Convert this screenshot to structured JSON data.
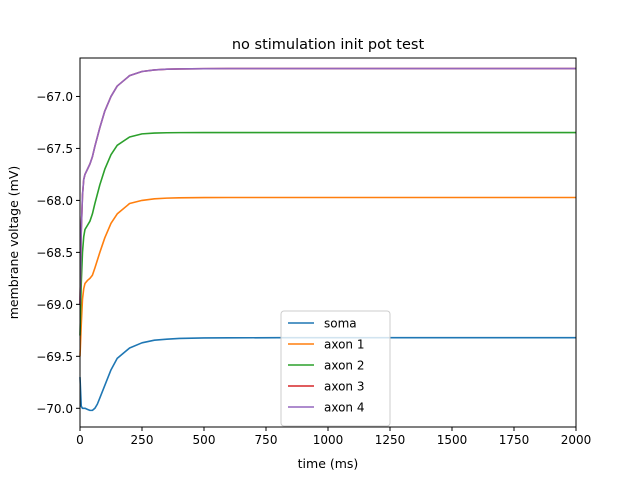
{
  "chart_data": {
    "type": "line",
    "title": "no stimulation init pot test",
    "xlabel": "time (ms)",
    "ylabel": "membrane voltage (mV)",
    "xlim": [
      0,
      2000
    ],
    "ylim": [
      -70.18,
      -66.63
    ],
    "xticks": [
      0,
      250,
      500,
      750,
      1000,
      1250,
      1500,
      1750,
      2000
    ],
    "xtick_labels": [
      "0",
      "250",
      "500",
      "750",
      "1000",
      "1250",
      "1500",
      "1750",
      "2000"
    ],
    "yticks": [
      -70.0,
      -69.5,
      -69.0,
      -68.5,
      -68.0,
      -67.5,
      -67.0
    ],
    "ytick_labels": [
      "−70.0",
      "−69.5",
      "−69.0",
      "−68.5",
      "−68.0",
      "−67.5",
      "−67.0"
    ],
    "grid": false,
    "legend_position": "lower-center",
    "series": [
      {
        "name": "soma",
        "color": "#1f77b4",
        "x": [
          0,
          5,
          10,
          20,
          30,
          40,
          50,
          60,
          70,
          80,
          100,
          125,
          150,
          200,
          250,
          300,
          350,
          400,
          500,
          600,
          800,
          1000,
          1500,
          2000
        ],
        "y": [
          -69.7,
          -69.98,
          -70.0,
          -70.0,
          -70.01,
          -70.02,
          -70.02,
          -70.0,
          -69.96,
          -69.9,
          -69.78,
          -69.63,
          -69.52,
          -69.42,
          -69.37,
          -69.345,
          -69.335,
          -69.328,
          -69.323,
          -69.322,
          -69.321,
          -69.321,
          -69.321,
          -69.321
        ]
      },
      {
        "name": "axon 1",
        "color": "#ff7f0e",
        "x": [
          0,
          5,
          10,
          15,
          20,
          30,
          40,
          50,
          60,
          80,
          100,
          125,
          150,
          200,
          250,
          300,
          350,
          400,
          500,
          600,
          800,
          1000,
          1500,
          2000
        ],
        "y": [
          -69.5,
          -69.2,
          -68.95,
          -68.85,
          -68.8,
          -68.77,
          -68.75,
          -68.72,
          -68.65,
          -68.5,
          -68.36,
          -68.22,
          -68.13,
          -68.03,
          -68.0,
          -67.985,
          -67.978,
          -67.975,
          -67.973,
          -67.972,
          -67.972,
          -67.972,
          -67.972,
          -67.972
        ]
      },
      {
        "name": "axon 2",
        "color": "#2ca02c",
        "x": [
          0,
          5,
          10,
          15,
          20,
          30,
          40,
          50,
          60,
          80,
          100,
          125,
          150,
          200,
          250,
          300,
          350,
          400,
          500,
          600,
          800,
          1000,
          1500,
          2000
        ],
        "y": [
          -69.3,
          -68.8,
          -68.5,
          -68.35,
          -68.28,
          -68.24,
          -68.2,
          -68.13,
          -68.03,
          -67.85,
          -67.7,
          -67.56,
          -67.47,
          -67.39,
          -67.36,
          -67.352,
          -67.349,
          -67.348,
          -67.347,
          -67.347,
          -67.347,
          -67.347,
          -67.347,
          -67.347
        ]
      },
      {
        "name": "axon 3",
        "color": "#d62728",
        "x": [
          0,
          5,
          10,
          15,
          20,
          30,
          40,
          50,
          60,
          80,
          100,
          125,
          150,
          200,
          250,
          300,
          350,
          400,
          500,
          600,
          800,
          1000,
          1500,
          2000
        ],
        "y": [
          -69.0,
          -68.3,
          -67.95,
          -67.8,
          -67.75,
          -67.7,
          -67.65,
          -67.58,
          -67.48,
          -67.3,
          -67.14,
          -67.0,
          -66.9,
          -66.8,
          -66.76,
          -66.745,
          -66.738,
          -66.735,
          -66.733,
          -66.732,
          -66.732,
          -66.732,
          -66.732,
          -66.732
        ]
      },
      {
        "name": "axon 4",
        "color": "#9467bd",
        "x": [
          0,
          5,
          10,
          15,
          20,
          30,
          40,
          50,
          60,
          80,
          100,
          125,
          150,
          200,
          250,
          300,
          350,
          400,
          500,
          600,
          800,
          1000,
          1500,
          2000
        ],
        "y": [
          -69.0,
          -68.3,
          -67.95,
          -67.8,
          -67.75,
          -67.7,
          -67.65,
          -67.58,
          -67.48,
          -67.3,
          -67.14,
          -67.0,
          -66.9,
          -66.8,
          -66.76,
          -66.745,
          -66.738,
          -66.735,
          -66.733,
          -66.732,
          -66.732,
          -66.732,
          -66.732,
          -66.732
        ]
      }
    ]
  }
}
